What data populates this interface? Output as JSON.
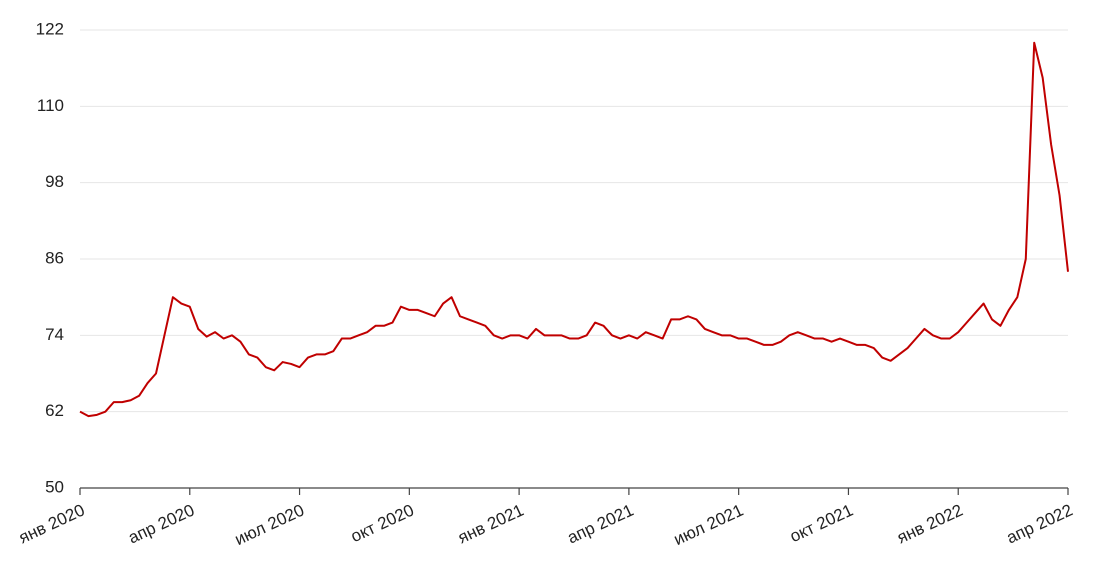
{
  "chart_data": {
    "type": "line",
    "categories": [
      "янв 2020",
      null,
      null,
      null,
      null,
      null,
      null,
      null,
      null,
      null,
      null,
      null,
      null,
      "апр 2020",
      null,
      null,
      null,
      null,
      null,
      null,
      null,
      null,
      null,
      null,
      null,
      null,
      "июл 2020",
      null,
      null,
      null,
      null,
      null,
      null,
      null,
      null,
      null,
      null,
      null,
      null,
      "окт 2020",
      null,
      null,
      null,
      null,
      null,
      null,
      null,
      null,
      null,
      null,
      null,
      null,
      "янв 2021",
      null,
      null,
      null,
      null,
      null,
      null,
      null,
      null,
      null,
      null,
      null,
      null,
      "апр 2021",
      null,
      null,
      null,
      null,
      null,
      null,
      null,
      null,
      null,
      null,
      null,
      null,
      "июл 2021",
      null,
      null,
      null,
      null,
      null,
      null,
      null,
      null,
      null,
      null,
      null,
      null,
      "окт 2021",
      null,
      null,
      null,
      null,
      null,
      null,
      null,
      null,
      null,
      null,
      null,
      null,
      "янв 2022",
      null,
      null,
      null,
      null,
      null,
      null,
      null,
      null,
      null,
      null,
      null,
      null,
      "апр 2022"
    ],
    "values": [
      62,
      61.3,
      61.5,
      62,
      63.5,
      63.5,
      63.8,
      64.5,
      66.5,
      68,
      74,
      80,
      79,
      78.5,
      75,
      73.8,
      74.5,
      73.5,
      74,
      73,
      71,
      70.5,
      69,
      68.5,
      69.8,
      69.5,
      69,
      70.5,
      71,
      71,
      71.5,
      73.5,
      73.5,
      74,
      74.5,
      75.5,
      75.5,
      76,
      78.5,
      78,
      78,
      77.5,
      77,
      79,
      80,
      77,
      76.5,
      76,
      75.5,
      74,
      73.5,
      74,
      74,
      73.5,
      75,
      74,
      74,
      74,
      73.5,
      73.5,
      74,
      76,
      75.5,
      74,
      73.5,
      74,
      73.5,
      74.5,
      74,
      73.5,
      76.5,
      76.5,
      77,
      76.5,
      75,
      74.5,
      74,
      74,
      73.5,
      73.5,
      73,
      72.5,
      72.5,
      73,
      74,
      74.5,
      74,
      73.5,
      73.5,
      73,
      73.5,
      73,
      72.5,
      72.5,
      72,
      70.5,
      70,
      71,
      72,
      73.5,
      75,
      74,
      73.5,
      73.5,
      74.5,
      76,
      77.5,
      79,
      76.5,
      75.5,
      78,
      80,
      86,
      120,
      114.5,
      104,
      96,
      84
    ],
    "color": "#c00000",
    "ylim": [
      50,
      122
    ],
    "yticks": [
      50,
      62,
      74,
      86,
      98,
      110,
      122
    ],
    "grid": true
  }
}
